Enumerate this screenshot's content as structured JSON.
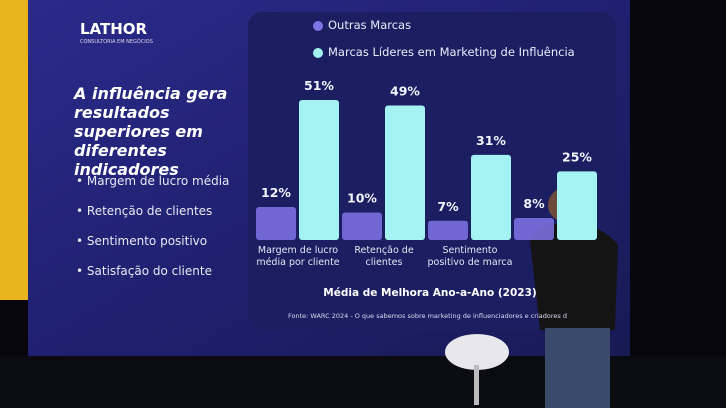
{
  "slide": {
    "logo": "LATHOR",
    "logo_tagline": "CONSULTORIA EM NEGÓCIOS",
    "heading": "A influência gera resultados superiores em diferentes indicadores",
    "bullets": [
      "Margem de lucro média",
      "Retenção de clientes",
      "Sentimento positivo",
      "Satisfação do cliente"
    ],
    "source": "Fonte: WARC 2024 - O que sabemos sobre marketing de influenciadores e criadores d"
  },
  "chart_data": {
    "type": "bar",
    "title": "Média de Melhora Ano-a-Ano (2023)",
    "categories": [
      "Margem de lucro média por cliente",
      "Retenção de clientes",
      "Sentimento positivo de marca",
      null
    ],
    "series": [
      {
        "name": "Outras Marcas",
        "color": "#7f74e6",
        "values": [
          12,
          10,
          7,
          8
        ],
        "value_labels": [
          "12%",
          "10%",
          "7%",
          "8%"
        ]
      },
      {
        "name": "Marcas Líderes em Marketing de Influência",
        "color": "#a4f2f2",
        "values": [
          51,
          49,
          31,
          25
        ],
        "value_labels": [
          "51%",
          "49%",
          "31%",
          "25%"
        ]
      }
    ]
  }
}
